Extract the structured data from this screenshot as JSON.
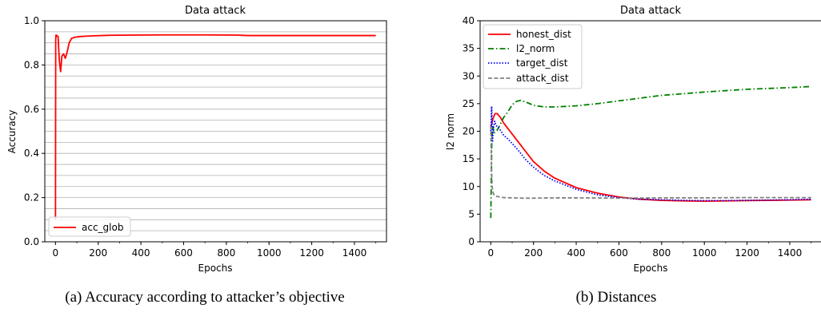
{
  "captions": {
    "a": "(a) Accuracy according to attacker’s objective",
    "b": "(b) Distances"
  },
  "chart_data": [
    {
      "type": "line",
      "title": "Data attack",
      "xlabel": "Epochs",
      "ylabel": "Accuracy",
      "xlim": [
        -50,
        1550
      ],
      "ylim": [
        0.0,
        1.0
      ],
      "xticks": [
        0,
        200,
        400,
        600,
        800,
        1000,
        1200,
        1400
      ],
      "yticks": [
        0.0,
        0.2,
        0.4,
        0.6,
        0.8,
        1.0
      ],
      "ytick_labels": [
        "0.0",
        "0.2",
        "0.4",
        "0.6",
        "0.8",
        "1.0"
      ],
      "grid": "horizontal minor lines",
      "legend": "lower-left",
      "series": [
        {
          "name": "acc_glob",
          "color": "#ff0000",
          "style": "solid",
          "x": [
            0,
            1,
            2,
            4,
            7,
            12,
            18,
            24,
            30,
            38,
            46,
            55,
            64,
            75,
            90,
            110,
            140,
            180,
            250,
            350,
            500,
            700,
            850,
            900,
            1100,
            1300,
            1500
          ],
          "y": [
            0.1,
            0.91,
            0.935,
            0.935,
            0.93,
            0.93,
            0.82,
            0.77,
            0.84,
            0.85,
            0.83,
            0.86,
            0.9,
            0.92,
            0.925,
            0.928,
            0.93,
            0.932,
            0.934,
            0.935,
            0.936,
            0.936,
            0.935,
            0.933,
            0.933,
            0.933,
            0.933
          ]
        }
      ]
    },
    {
      "type": "line",
      "title": "Data attack",
      "xlabel": "Epochs",
      "ylabel": "l2 norm",
      "xlim": [
        -50,
        1550
      ],
      "ylim": [
        0,
        40
      ],
      "xticks": [
        0,
        200,
        400,
        600,
        800,
        1000,
        1200,
        1400
      ],
      "yticks": [
        0,
        5,
        10,
        15,
        20,
        25,
        30,
        35,
        40
      ],
      "ytick_labels": [
        "0",
        "5",
        "10",
        "15",
        "20",
        "25",
        "30",
        "35",
        "40"
      ],
      "grid": "off",
      "legend": "top-left",
      "series": [
        {
          "name": "honest_dist",
          "color": "#ff0000",
          "style": "solid",
          "x": [
            0,
            5,
            12,
            20,
            30,
            45,
            60,
            80,
            100,
            130,
            160,
            200,
            250,
            300,
            400,
            500,
            600,
            700,
            800,
            900,
            1000,
            1100,
            1200,
            1300,
            1400,
            1500
          ],
          "y": [
            20.5,
            21.5,
            22.5,
            23.2,
            23.2,
            22.5,
            21.5,
            20.5,
            19.5,
            18.0,
            16.5,
            14.5,
            12.8,
            11.5,
            9.8,
            8.8,
            8.1,
            7.7,
            7.5,
            7.4,
            7.35,
            7.4,
            7.45,
            7.5,
            7.55,
            7.6
          ]
        },
        {
          "name": "l2_norm",
          "color": "#008000",
          "style": "dashdot",
          "x": [
            0,
            5,
            10,
            15,
            22,
            30,
            45,
            60,
            80,
            100,
            120,
            140,
            170,
            200,
            250,
            300,
            400,
            500,
            600,
            800,
            1000,
            1200,
            1400,
            1500
          ],
          "y": [
            4.3,
            19.0,
            21.0,
            19.6,
            20.0,
            20.2,
            21.3,
            22.5,
            23.5,
            24.8,
            25.4,
            25.6,
            25.2,
            24.7,
            24.4,
            24.4,
            24.6,
            25.0,
            25.5,
            26.5,
            27.1,
            27.6,
            27.9,
            28.1
          ]
        },
        {
          "name": "target_dist",
          "color": "#0000ff",
          "style": "dotted",
          "x": [
            0,
            4,
            8,
            12,
            18,
            25,
            35,
            45,
            60,
            80,
            100,
            130,
            160,
            200,
            250,
            300,
            400,
            500,
            600,
            700,
            800,
            900,
            1000,
            1100,
            1200,
            1300,
            1400,
            1500
          ],
          "y": [
            20.0,
            24.5,
            18.0,
            20.5,
            21.8,
            21.0,
            20.8,
            20.2,
            19.3,
            18.6,
            17.8,
            16.5,
            15.0,
            13.5,
            12.0,
            11.0,
            9.5,
            8.5,
            8.0,
            7.7,
            7.6,
            7.5,
            7.45,
            7.45,
            7.5,
            7.55,
            7.6,
            7.7
          ]
        },
        {
          "name": "attack_dist",
          "color": "#808080",
          "style": "dashed",
          "x": [
            0,
            3,
            6,
            10,
            15,
            20,
            30,
            60,
            100,
            150,
            200,
            300,
            400,
            600,
            800,
            1000,
            1200,
            1400,
            1500
          ],
          "y": [
            21.0,
            14.0,
            10.0,
            9.0,
            8.5,
            8.3,
            8.2,
            8.0,
            7.95,
            7.9,
            7.9,
            7.95,
            7.95,
            7.9,
            7.95,
            7.95,
            8.0,
            8.0,
            8.0
          ]
        }
      ]
    }
  ]
}
